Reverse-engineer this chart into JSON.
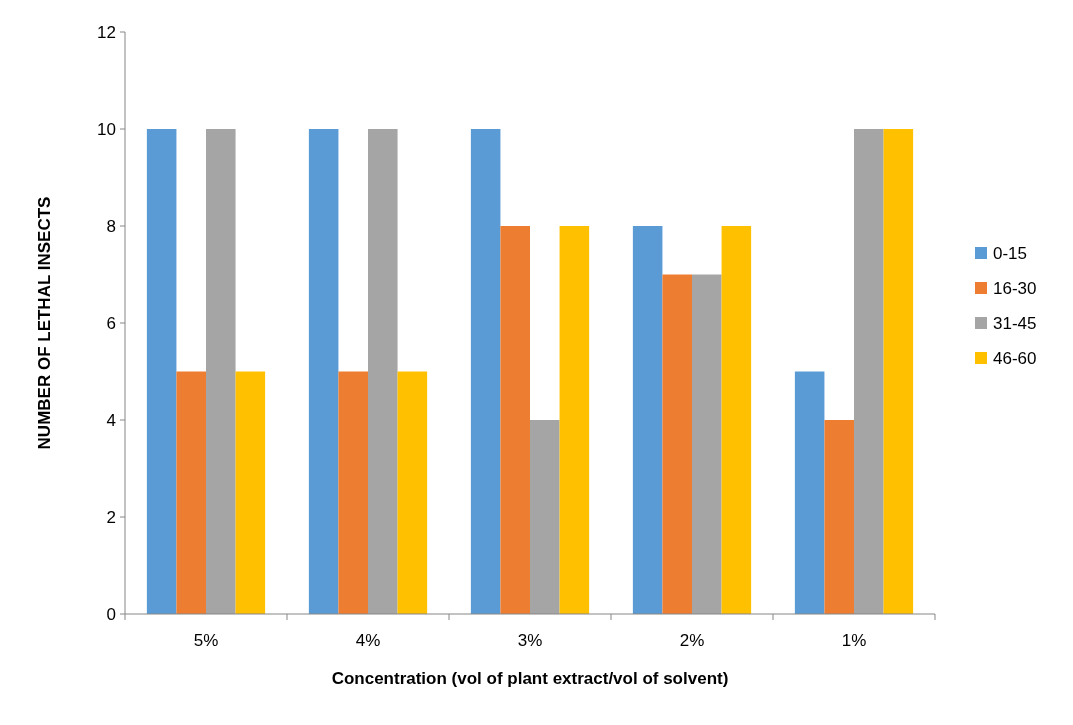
{
  "chart_data": {
    "type": "bar",
    "xlabel": "Concentration (vol of plant extract/vol of solvent)",
    "ylabel": "NUMBER OF LETHAL INSECTS",
    "categories": [
      "5%",
      "4%",
      "3%",
      "2%",
      "1%"
    ],
    "series": [
      {
        "name": "0-15",
        "color": "#5b9bd5",
        "values": [
          10,
          10,
          10,
          8,
          5
        ]
      },
      {
        "name": "16-30",
        "color": "#ed7d31",
        "values": [
          5,
          5,
          8,
          7,
          4
        ]
      },
      {
        "name": "31-45",
        "color": "#a5a5a5",
        "values": [
          10,
          10,
          4,
          7,
          10
        ]
      },
      {
        "name": "46-60",
        "color": "#ffc000",
        "values": [
          5,
          5,
          8,
          8,
          10
        ]
      }
    ],
    "ylim": [
      0,
      12
    ],
    "yticks": [
      0,
      2,
      4,
      6,
      8,
      10,
      12
    ],
    "grid": false,
    "legend": "right"
  }
}
